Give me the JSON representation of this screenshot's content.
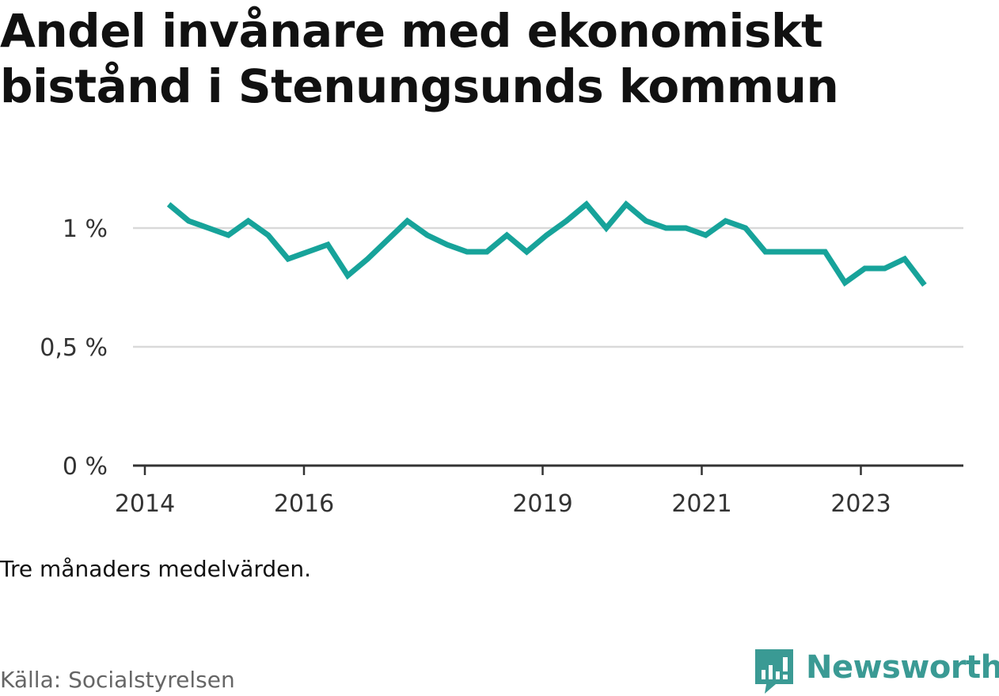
{
  "title": "Andel invånare med ekonomiskt bistånd i Stenungsunds kommun",
  "note": "Tre månaders medelvärden.",
  "source": "Källa: Socialstyrelsen",
  "brand": {
    "name": "Newsworthy",
    "icon": "newsworthy-logo-icon",
    "color": "#3a9a94"
  },
  "colors": {
    "line": "#17a39a",
    "grid": "#d9d9d9",
    "axis": "#333333"
  },
  "chart_data": {
    "type": "line",
    "title": "Andel invånare med ekonomiskt bistånd i Stenungsunds kommun",
    "xlabel": "",
    "ylabel": "",
    "ylim": [
      0,
      1.15
    ],
    "grid": true,
    "y_ticks": [
      {
        "value": 0,
        "label": "0 %"
      },
      {
        "value": 0.5,
        "label": "0,5 %"
      },
      {
        "value": 1,
        "label": "1 %"
      }
    ],
    "x_ticks": [
      {
        "value": 2014,
        "label": "2014"
      },
      {
        "value": 2016,
        "label": "2016"
      },
      {
        "value": 2019,
        "label": "2019"
      },
      {
        "value": 2021,
        "label": "2021"
      },
      {
        "value": 2023,
        "label": "2023"
      }
    ],
    "series": [
      {
        "x": [
          2014.3,
          2014.55,
          2014.8,
          2015.05,
          2015.3,
          2015.55,
          2015.8,
          2016.05,
          2016.3,
          2016.55,
          2016.8,
          2017.05,
          2017.3,
          2017.55,
          2017.8,
          2018.05,
          2018.3,
          2018.55,
          2018.8,
          2019.05,
          2019.3,
          2019.55,
          2019.8,
          2020.05,
          2020.3,
          2020.55,
          2020.8,
          2021.05,
          2021.3,
          2021.55,
          2021.8,
          2022.05,
          2022.3,
          2022.55,
          2022.8,
          2023.05,
          2023.3,
          2023.55,
          2023.8
        ],
        "values": [
          1.1,
          1.03,
          1.0,
          0.97,
          1.03,
          0.97,
          0.87,
          0.9,
          0.93,
          0.8,
          0.87,
          0.95,
          1.03,
          0.97,
          0.93,
          0.9,
          0.9,
          0.97,
          0.9,
          0.97,
          1.03,
          1.1,
          1.0,
          1.1,
          1.03,
          1.0,
          1.0,
          0.97,
          1.03,
          1.0,
          0.9,
          0.9,
          0.9,
          0.9,
          0.77,
          0.83,
          0.83,
          0.87,
          0.76
        ]
      }
    ]
  }
}
